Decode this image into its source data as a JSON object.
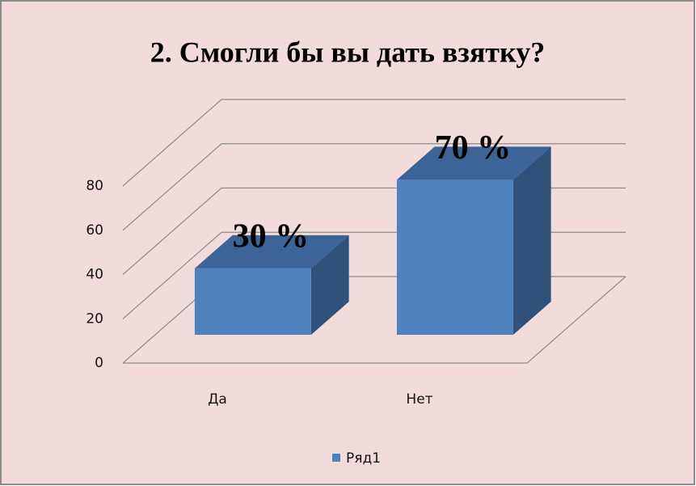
{
  "chart_data": {
    "type": "bar3d",
    "title": "2. Смогли бы вы дать взятку?",
    "categories": [
      "Да",
      "Нет"
    ],
    "series": [
      {
        "name": "Ряд1",
        "color": "#4f81bd",
        "values": [
          30,
          70
        ],
        "value_labels": [
          "30 %",
          "70 %"
        ]
      }
    ],
    "ylim": [
      0,
      80
    ],
    "yticks": [
      0,
      20,
      40,
      60,
      80
    ],
    "grid": true,
    "legend": "bottom"
  }
}
